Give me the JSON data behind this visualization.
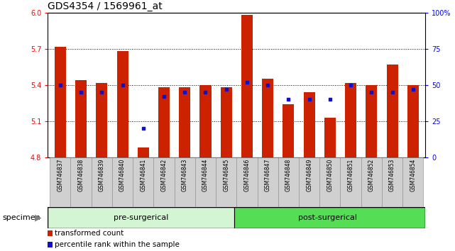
{
  "title": "GDS4354 / 1569961_at",
  "samples": [
    "GSM746837",
    "GSM746838",
    "GSM746839",
    "GSM746840",
    "GSM746841",
    "GSM746842",
    "GSM746843",
    "GSM746844",
    "GSM746845",
    "GSM746846",
    "GSM746847",
    "GSM746848",
    "GSM746849",
    "GSM746850",
    "GSM746851",
    "GSM746852",
    "GSM746853",
    "GSM746854"
  ],
  "bar_values": [
    5.72,
    5.44,
    5.42,
    5.68,
    4.88,
    5.38,
    5.38,
    5.4,
    5.38,
    5.98,
    5.45,
    5.24,
    5.34,
    5.13,
    5.42,
    5.4,
    5.57,
    5.4
  ],
  "percentile_values": [
    50,
    45,
    45,
    50,
    20,
    42,
    45,
    45,
    47,
    52,
    50,
    40,
    40,
    40,
    50,
    45,
    45,
    47
  ],
  "ymin": 4.8,
  "ymax": 6.0,
  "yticks": [
    4.8,
    5.1,
    5.4,
    5.7,
    6.0
  ],
  "right_yticks": [
    0,
    25,
    50,
    75,
    100
  ],
  "bar_color": "#cc2200",
  "blue_color": "#1010cc",
  "pre_surgical_count": 9,
  "post_surgical_count": 9,
  "pre_surgical_label": "pre-surgerical",
  "post_surgical_label": "post-surgerical",
  "legend_red_label": "transformed count",
  "legend_blue_label": "percentile rank within the sample",
  "specimen_label": "specimen",
  "bg_xticklabel": "#d0d0d0",
  "bg_pre": "#d4f5d4",
  "bg_post": "#55dd55",
  "title_fontsize": 10,
  "tick_fontsize": 7,
  "bar_label_fontsize": 5.5,
  "band_fontsize": 8,
  "legend_fontsize": 7.5,
  "specimen_fontsize": 8
}
